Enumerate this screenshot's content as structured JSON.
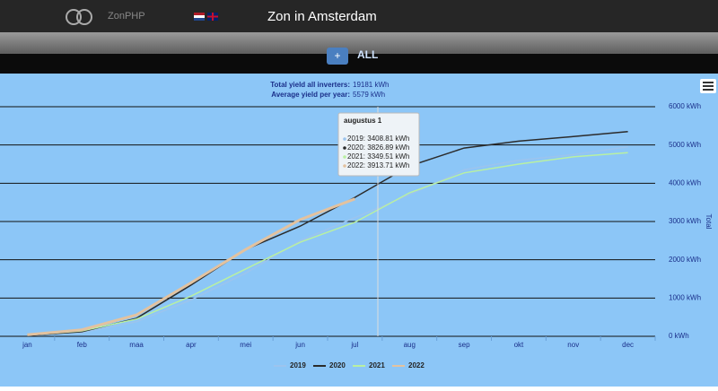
{
  "header": {
    "logo": "ZonPHP",
    "title": "Zon in Amsterdam"
  },
  "nav": {
    "button": "+",
    "label": "ALL"
  },
  "chart_data": {
    "type": "line",
    "subtitle": [
      "Total yield all inverters:",
      "19181 kWh",
      "Average yield per year:",
      "5579 kWh"
    ],
    "y_label": "Total",
    "categories": [
      "jan",
      "feb",
      "maa",
      "apr",
      "mei",
      "jun",
      "jul",
      "aug",
      "sep",
      "okt",
      "nov",
      "dec"
    ],
    "series": [
      {
        "name": "2019",
        "color": "#9cc4ee",
        "values": [
          20,
          100,
          380,
          950,
          1650,
          2500,
          3100,
          3700,
          4350,
          4600,
          4750,
          4950
        ]
      },
      {
        "name": "2020",
        "color": "#2b2b2b",
        "values": [
          20,
          120,
          470,
          1340,
          2270,
          2880,
          3630,
          4450,
          4920,
          5100,
          5220,
          5350
        ]
      },
      {
        "name": "2021",
        "color": "#b9f0a2",
        "values": [
          30,
          140,
          450,
          1050,
          1760,
          2460,
          2980,
          3750,
          4270,
          4500,
          4690,
          4800
        ]
      },
      {
        "name": "2022",
        "color": "#e3c29f",
        "values": [
          40,
          170,
          560,
          1400,
          2270,
          3050,
          3590,
          null,
          null,
          null,
          null,
          null
        ]
      }
    ],
    "ylim": [
      0,
      6000
    ],
    "yticks": [
      {
        "value": 0,
        "label": "0 kWh"
      },
      {
        "value": 1000,
        "label": "1000 kWh"
      },
      {
        "value": 2000,
        "label": "2000 kWh"
      },
      {
        "value": 3000,
        "label": "3000 kWh"
      },
      {
        "value": 4000,
        "label": "4000 kWh"
      },
      {
        "value": 5000,
        "label": "5000 kWh"
      },
      {
        "value": 6000,
        "label": "6000 kWh"
      }
    ],
    "grid": true,
    "tooltip": {
      "title": "augustus 1",
      "items": [
        "2019: 3408.81 kWh",
        "2020: 3826.89 kWh",
        "2021: 3349.51 kWh",
        "2022: 3913.71 kWh"
      ]
    }
  }
}
